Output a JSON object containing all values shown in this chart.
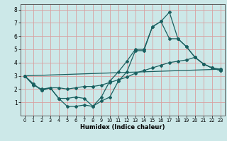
{
  "bg_color": "#cce8e8",
  "grid_color": "#d8a0a0",
  "line_color": "#1a6060",
  "xlabel": "Humidex (Indice chaleur)",
  "xlim": [
    -0.5,
    23.5
  ],
  "ylim": [
    0,
    8.4
  ],
  "xticks": [
    0,
    1,
    2,
    3,
    4,
    5,
    6,
    7,
    8,
    9,
    10,
    11,
    12,
    13,
    14,
    15,
    16,
    17,
    18,
    19,
    20,
    21,
    22,
    23
  ],
  "yticks": [
    1,
    2,
    3,
    4,
    5,
    6,
    7,
    8
  ],
  "line1_x": [
    0,
    1,
    2,
    3,
    4,
    5,
    6,
    7,
    8,
    9,
    10,
    11,
    12,
    13,
    14,
    15,
    16,
    17,
    18,
    19,
    20,
    21,
    22,
    23
  ],
  "line1_y": [
    3.0,
    2.4,
    1.9,
    2.1,
    1.3,
    0.7,
    0.7,
    0.8,
    0.7,
    1.1,
    1.4,
    2.6,
    3.3,
    4.9,
    4.9,
    6.7,
    7.1,
    7.8,
    5.8,
    5.2,
    4.4,
    3.9,
    3.6,
    3.4
  ],
  "line2_x": [
    0,
    1,
    2,
    3,
    4,
    5,
    6,
    7,
    8,
    9,
    10,
    11,
    12,
    13,
    14,
    15,
    16,
    17,
    18,
    19,
    20,
    21,
    22,
    23
  ],
  "line2_y": [
    3.0,
    2.4,
    1.9,
    2.1,
    1.3,
    1.3,
    1.4,
    1.3,
    0.7,
    1.4,
    2.6,
    3.3,
    4.1,
    5.0,
    5.0,
    6.7,
    7.1,
    5.8,
    5.8,
    5.2,
    4.4,
    3.9,
    3.6,
    3.4
  ],
  "line3_x": [
    0,
    1,
    2,
    3,
    4,
    5,
    6,
    7,
    8,
    9,
    10,
    11,
    12,
    13,
    14,
    15,
    16,
    17,
    18,
    19,
    20,
    21,
    22,
    23
  ],
  "line3_y": [
    3.0,
    2.3,
    2.0,
    2.1,
    2.1,
    2.0,
    2.1,
    2.2,
    2.2,
    2.3,
    2.5,
    2.7,
    2.9,
    3.2,
    3.4,
    3.6,
    3.8,
    4.0,
    4.1,
    4.2,
    4.4,
    3.9,
    3.6,
    3.5
  ],
  "line4_x": [
    0,
    23
  ],
  "line4_y": [
    3.0,
    3.5
  ]
}
